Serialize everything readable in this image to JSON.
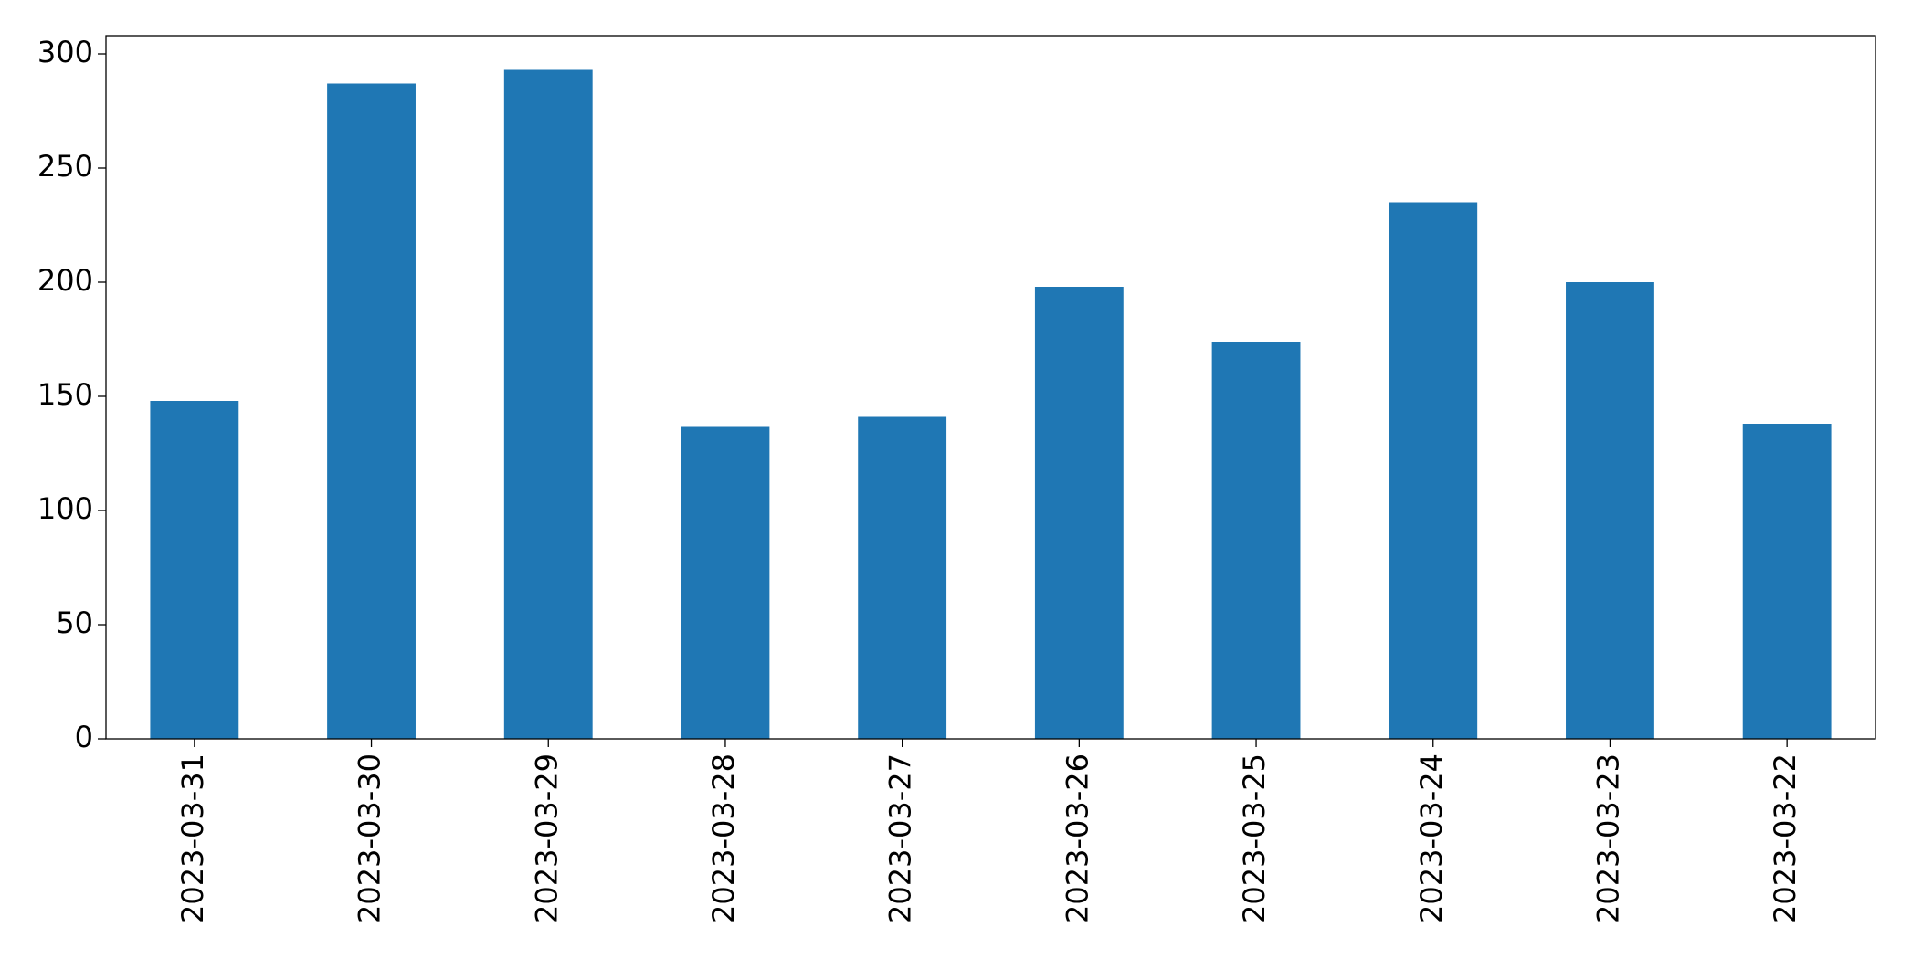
{
  "chart_data": {
    "type": "bar",
    "categories": [
      "2023-03-31",
      "2023-03-30",
      "2023-03-29",
      "2023-03-28",
      "2023-03-27",
      "2023-03-26",
      "2023-03-25",
      "2023-03-24",
      "2023-03-23",
      "2023-03-22"
    ],
    "values": [
      148,
      287,
      293,
      137,
      141,
      198,
      174,
      235,
      200,
      138
    ],
    "color": "#1f77b4",
    "ylim": [
      0,
      308
    ],
    "yticks": [
      0,
      50,
      100,
      150,
      200,
      250,
      300
    ],
    "grid": false
  }
}
